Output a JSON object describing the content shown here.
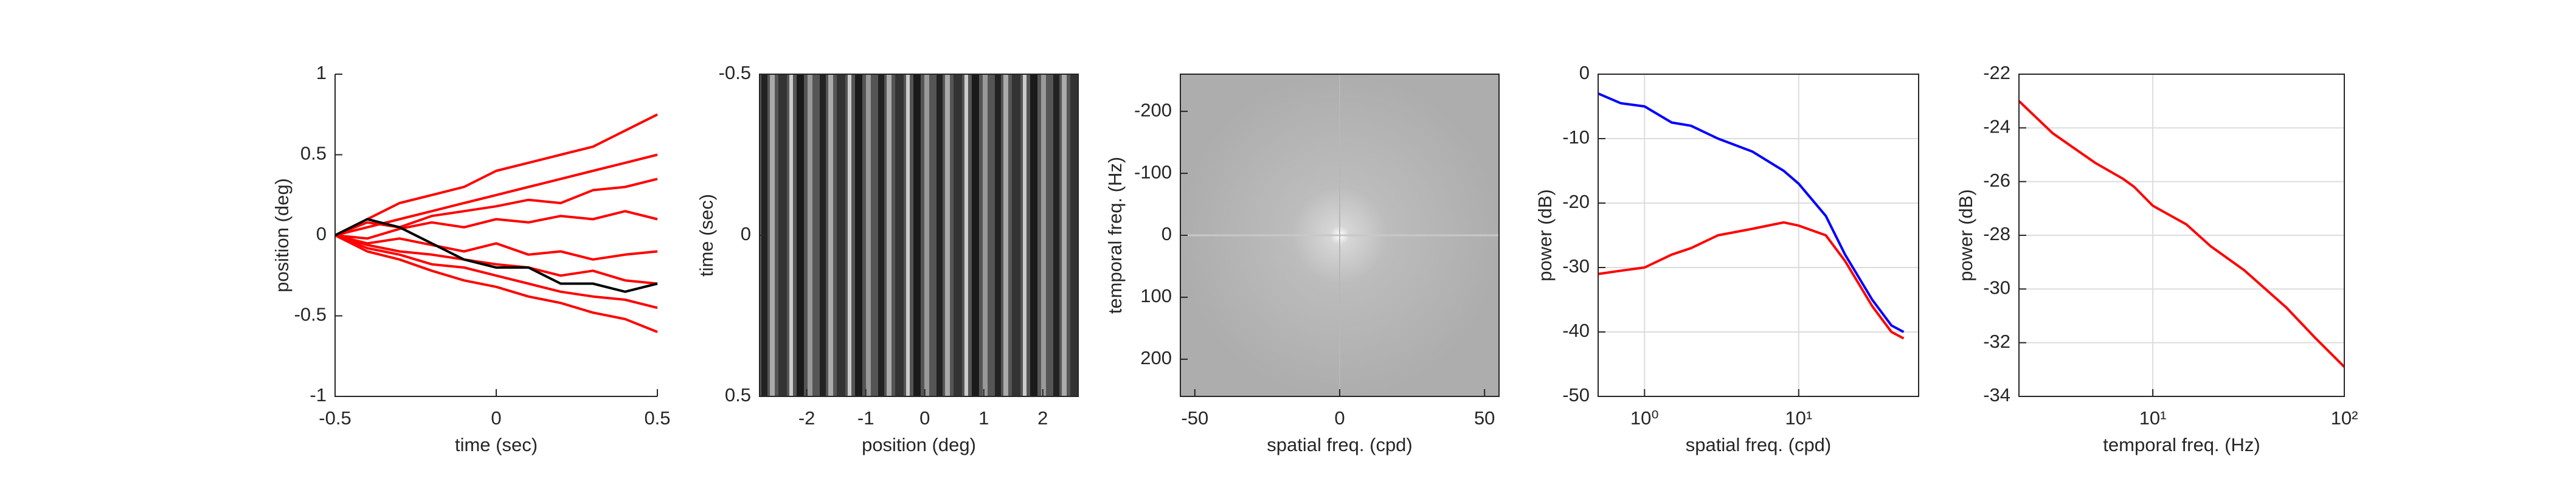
{
  "chart_data": [
    {
      "type": "line",
      "box": false,
      "xlabel": "time (sec)",
      "ylabel": "position (deg)",
      "x": [
        -0.5,
        -0.4,
        -0.3,
        -0.2,
        -0.1,
        0,
        0.1,
        0.2,
        0.3,
        0.4,
        0.5
      ],
      "xlim": [
        -0.5,
        0.5
      ],
      "xticks": [
        -0.5,
        0,
        0.5
      ],
      "ylim": [
        -1,
        1
      ],
      "yticks": [
        -1,
        -0.5,
        0,
        0.5,
        1
      ],
      "series": [
        {
          "color": "#ff0000",
          "values": [
            0,
            0.1,
            0.2,
            0.25,
            0.3,
            0.4,
            0.45,
            0.5,
            0.55,
            0.65,
            0.75
          ]
        },
        {
          "color": "#ff0000",
          "values": [
            0,
            0.05,
            0.1,
            0.15,
            0.2,
            0.25,
            0.3,
            0.35,
            0.4,
            0.45,
            0.5
          ]
        },
        {
          "color": "#ff0000",
          "values": [
            0,
            0.08,
            0.05,
            0.12,
            0.15,
            0.18,
            0.22,
            0.2,
            0.28,
            0.3,
            0.35
          ]
        },
        {
          "color": "#ff0000",
          "values": [
            0,
            -0.02,
            0.04,
            0.08,
            0.05,
            0.1,
            0.08,
            0.12,
            0.1,
            0.15,
            0.1
          ]
        },
        {
          "color": "#ff0000",
          "values": [
            0,
            -0.05,
            -0.02,
            -0.06,
            -0.1,
            -0.05,
            -0.12,
            -0.1,
            -0.15,
            -0.12,
            -0.1
          ]
        },
        {
          "color": "#ff0000",
          "values": [
            0,
            -0.06,
            -0.1,
            -0.12,
            -0.15,
            -0.18,
            -0.2,
            -0.25,
            -0.22,
            -0.28,
            -0.3
          ]
        },
        {
          "color": "#ff0000",
          "values": [
            0,
            -0.08,
            -0.12,
            -0.18,
            -0.2,
            -0.25,
            -0.3,
            -0.35,
            -0.38,
            -0.4,
            -0.45
          ]
        },
        {
          "color": "#ff0000",
          "values": [
            0,
            -0.1,
            -0.15,
            -0.22,
            -0.28,
            -0.32,
            -0.38,
            -0.42,
            -0.48,
            -0.52,
            -0.6
          ]
        },
        {
          "color": "#000000",
          "values": [
            0,
            0.1,
            0.05,
            -0.05,
            -0.15,
            -0.2,
            -0.2,
            -0.3,
            -0.3,
            -0.35,
            -0.3
          ]
        }
      ]
    },
    {
      "type": "xt-image",
      "box": true,
      "xlabel": "position (deg)",
      "ylabel": "time (sec)",
      "xlim": [
        -2.8,
        2.6
      ],
      "xticks": [
        -2,
        -1,
        0,
        1,
        2
      ],
      "ylim": [
        0.5,
        -0.5
      ],
      "yticks": [
        -0.5,
        0,
        0.5
      ]
    },
    {
      "type": "spectrum-image",
      "box": true,
      "xlabel": "spatial freq. (cpd)",
      "ylabel": "temporal freq. (Hz)",
      "xlim": [
        -55,
        55
      ],
      "xticks": [
        -50,
        0,
        50
      ],
      "ylim": [
        260,
        -260
      ],
      "yticks": [
        -200,
        -100,
        0,
        100,
        200
      ]
    },
    {
      "type": "line",
      "box": true,
      "grid": true,
      "xlog": true,
      "xlabel": "spatial freq. (cpd)",
      "ylabel": "power (dB)",
      "x": [
        0.5,
        0.7,
        1,
        1.5,
        2,
        3,
        5,
        8,
        10,
        15,
        20,
        30,
        40,
        48
      ],
      "xlim": [
        0.5,
        60
      ],
      "xticks": [
        {
          "value": 1,
          "label": "10⁰"
        },
        {
          "value": 10,
          "label": "10¹"
        }
      ],
      "ylim": [
        -50,
        0
      ],
      "yticks": [
        -50,
        -40,
        -30,
        -20,
        -10,
        0
      ],
      "series": [
        {
          "color": "#0000ff",
          "values": [
            -3,
            -4.5,
            -5,
            -7.5,
            -8,
            -10,
            -12,
            -15,
            -17,
            -22,
            -28,
            -35,
            -39,
            -40
          ]
        },
        {
          "color": "#ff0000",
          "values": [
            -31,
            -30.5,
            -30,
            -28,
            -27,
            -25,
            -24,
            -23,
            -23.5,
            -25,
            -29,
            -36,
            -40,
            -41
          ]
        }
      ]
    },
    {
      "type": "line",
      "box": true,
      "grid": true,
      "xlog": true,
      "xlabel": "temporal freq. (Hz)",
      "ylabel": "power (dB)",
      "x": [
        2,
        3,
        5,
        7,
        8,
        10,
        15,
        20,
        30,
        50,
        70,
        100
      ],
      "xlim": [
        2,
        100
      ],
      "xticks": [
        {
          "value": 10,
          "label": "10¹"
        },
        {
          "value": 100,
          "label": "10²"
        }
      ],
      "ylim": [
        -34,
        -22
      ],
      "yticks": [
        -34,
        -32,
        -30,
        -28,
        -26,
        -24,
        -22
      ],
      "series": [
        {
          "color": "#ff0000",
          "values": [
            -23,
            -24.2,
            -25.3,
            -25.9,
            -26.2,
            -26.9,
            -27.6,
            -28.4,
            -29.3,
            -30.7,
            -31.8,
            -32.9
          ]
        }
      ]
    }
  ]
}
